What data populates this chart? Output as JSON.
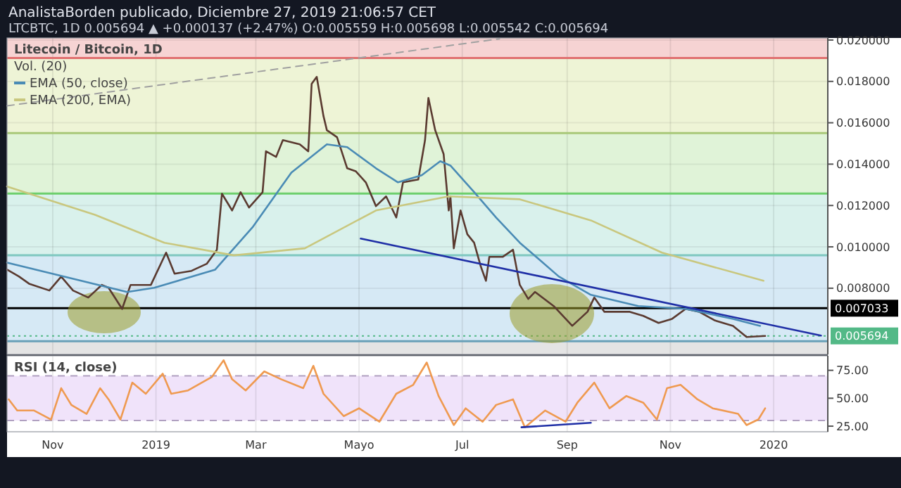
{
  "chart_data": [
    {
      "type": "line",
      "title": "Litecoin / Bitcoin, 1D",
      "subtitle": "AnalistaBorden publicado, Diciembre 27, 2019 21:06:57 CET",
      "annotations": [
        "LTCBTC, 1D 0.005694 ▲ +0.000137 (+2.47%) O:0.005559 H:0.005698 L:0.005542 C:0.005694",
        "Vol. (20)"
      ],
      "xlim": [
        "2018-10-05",
        "2020-02-02"
      ],
      "xticks": [
        {
          "value": "2018-11-01",
          "label": null
        },
        {
          "value": "2019-01-01",
          "label": null
        },
        {
          "value": "2019-03-01",
          "label": null
        },
        {
          "value": "2019-05-01",
          "label": null
        },
        {
          "value": "2019-07-01",
          "label": null
        },
        {
          "value": "2019-09-01",
          "label": null
        },
        {
          "value": "2019-11-01",
          "label": null
        },
        {
          "value": "2020-01-01",
          "label": null
        }
      ],
      "ylim": [
        0.0048,
        0.0201
      ],
      "yticks": [
        {
          "value": 0.008,
          "label": "0.008000"
        },
        {
          "value": 0.01,
          "label": "0.010000"
        },
        {
          "value": 0.012,
          "label": "0.012000"
        },
        {
          "value": 0.014,
          "label": "0.014000"
        },
        {
          "value": 0.016,
          "label": "0.016000"
        },
        {
          "value": 0.018,
          "label": "0.018000"
        },
        {
          "value": 0.02,
          "label": "0.020000"
        }
      ],
      "tick_labels": "y",
      "grid": true,
      "legend": "top left",
      "marker": "none",
      "bands": [
        {
          "axis": "y",
          "from": 0.01913,
          "to": 0.0201,
          "color": "#f6d3d3"
        },
        {
          "axis": "y",
          "from": 0.0155,
          "to": 0.01913,
          "color": "#eef4d6"
        },
        {
          "axis": "y",
          "from": 0.01258,
          "to": 0.0155,
          "color": "#e0f3d8"
        },
        {
          "axis": "y",
          "from": 0.00959,
          "to": 0.01258,
          "color": "#d9f1ec"
        },
        {
          "axis": "y",
          "from": 0.007033,
          "to": 0.00959,
          "color": "#d6e9f5"
        },
        {
          "axis": "y",
          "from": 0.00544,
          "to": 0.007033,
          "color": "#d6e9f5"
        },
        {
          "axis": "y",
          "from": 0.0048,
          "to": 0.00544,
          "color": "#e4e4e4"
        }
      ],
      "ref_lines": [
        {
          "axis": "y",
          "value": 0.01913,
          "color": "#e07070"
        },
        {
          "axis": "y",
          "value": 0.0155,
          "color": "#a8c878"
        },
        {
          "axis": "y",
          "value": 0.01258,
          "color": "#6ccf6c"
        },
        {
          "axis": "y",
          "value": 0.00959,
          "color": "#7fc8c0"
        },
        {
          "axis": "y",
          "value": 0.00544,
          "color": "#6aa0b8"
        },
        {
          "axis": "y",
          "value": 0.007033,
          "label": "0.007033",
          "color": "#000000"
        },
        {
          "axis": "y",
          "value": 0.005694,
          "label": "0.005694",
          "color": "#53b987",
          "line_style": "dotted"
        }
      ],
      "series": [
        {
          "color": "#5a3a30",
          "x": [
            "2018-10-05",
            "2018-10-12",
            "2018-10-18",
            "2018-10-30",
            "2018-11-06",
            "2018-11-13",
            "2018-11-22",
            "2018-11-30",
            "2018-12-04",
            "2018-12-12",
            "2018-12-17",
            "2018-12-29",
            "2019-01-07",
            "2019-01-12",
            "2019-01-22",
            "2019-01-31",
            "2019-02-06",
            "2019-02-09",
            "2019-02-15",
            "2019-02-20",
            "2019-02-25",
            "2019-03-05",
            "2019-03-07",
            "2019-03-13",
            "2019-03-17",
            "2019-03-27",
            "2019-04-01",
            "2019-04-03",
            "2019-04-06",
            "2019-04-10",
            "2019-04-12",
            "2019-04-18",
            "2019-04-24",
            "2019-04-29",
            "2019-05-05",
            "2019-05-11",
            "2019-05-17",
            "2019-05-23",
            "2019-05-27",
            "2019-06-05",
            "2019-06-09",
            "2019-06-11",
            "2019-06-15",
            "2019-06-20",
            "2019-06-23",
            "2019-06-24",
            "2019-06-26",
            "2019-06-30",
            "2019-07-04",
            "2019-07-08",
            "2019-07-12",
            "2019-07-15",
            "2019-07-17",
            "2019-07-25",
            "2019-07-31",
            "2019-08-04",
            "2019-08-09",
            "2019-08-13",
            "2019-08-24",
            "2019-09-04",
            "2019-09-13",
            "2019-09-17",
            "2019-09-23",
            "2019-10-08",
            "2019-10-16",
            "2019-10-25",
            "2019-11-02",
            "2019-11-10",
            "2019-11-18",
            "2019-11-27",
            "2019-12-08",
            "2019-12-16",
            "2019-12-27"
          ],
          "values": [
            0.0089,
            0.00857,
            0.00822,
            0.00789,
            0.00856,
            0.00789,
            0.00755,
            0.00816,
            0.00802,
            0.007,
            0.00816,
            0.00816,
            0.00972,
            0.0087,
            0.00884,
            0.00918,
            0.00986,
            0.01257,
            0.01176,
            0.01264,
            0.0119,
            0.01264,
            0.01462,
            0.01435,
            0.01516,
            0.01496,
            0.01462,
            0.01788,
            0.01822,
            0.01632,
            0.01564,
            0.0153,
            0.0138,
            0.01366,
            0.01312,
            0.01197,
            0.01244,
            0.01142,
            0.01312,
            0.01326,
            0.01516,
            0.0172,
            0.01564,
            0.01448,
            0.01176,
            0.01244,
            0.00993,
            0.01176,
            0.01061,
            0.0102,
            0.00904,
            0.00836,
            0.00952,
            0.00952,
            0.00986,
            0.00816,
            0.00748,
            0.00782,
            0.00714,
            0.00618,
            0.00686,
            0.00755,
            0.00686,
            0.00686,
            0.00666,
            0.00632,
            0.00652,
            0.007,
            0.00686,
            0.00645,
            0.00618,
            0.00564,
            0.005694
          ]
        },
        {
          "name": "EMA (50, close)",
          "color": "#4a8bb5",
          "x": [
            "2018-10-05",
            "2018-12-15",
            "2018-12-31",
            "2019-02-05",
            "2019-02-27",
            "2019-03-22",
            "2019-04-12",
            "2019-04-24",
            "2019-05-11",
            "2019-05-24",
            "2019-06-07",
            "2019-06-18",
            "2019-06-24",
            "2019-07-08",
            "2019-07-21",
            "2019-08-04",
            "2019-08-27",
            "2019-09-15",
            "2019-10-13",
            "2019-11-10",
            "2019-12-08",
            "2019-12-24"
          ],
          "values": [
            0.00924,
            0.00782,
            0.00802,
            0.0089,
            0.01094,
            0.01359,
            0.01496,
            0.01482,
            0.0138,
            0.01312,
            0.01346,
            0.01414,
            0.01393,
            0.01265,
            0.01142,
            0.0102,
            0.00857,
            0.00768,
            0.00714,
            0.007,
            0.00652,
            0.00618
          ]
        },
        {
          "name": "EMA (200, EMA)",
          "color": "#c9c77e",
          "x": [
            "2018-10-05",
            "2018-11-26",
            "2019-01-06",
            "2019-02-16",
            "2019-03-30",
            "2019-05-11",
            "2019-06-23",
            "2019-08-04",
            "2019-09-15",
            "2019-10-27",
            "2019-12-26"
          ],
          "values": [
            0.01292,
            0.01155,
            0.0102,
            0.00959,
            0.00993,
            0.01176,
            0.01244,
            0.0123,
            0.01128,
            0.00972,
            0.00836
          ]
        },
        {
          "color": "#1f2fa6",
          "x": [
            "2019-05-02",
            "2020-01-29"
          ],
          "values": [
            0.0104,
            0.00571
          ]
        },
        {
          "color": "#a0a0a0",
          "line_style": "dashed",
          "x": [
            "2018-10-05",
            "2019-07-23"
          ],
          "values": [
            0.01682,
            0.02006
          ]
        }
      ]
    },
    {
      "type": "line",
      "title": "RSI (14, close)",
      "xlim": [
        "2018-10-05",
        "2020-02-02"
      ],
      "xticks": [
        {
          "value": "2018-11-01",
          "label": "Nov"
        },
        {
          "value": "2019-01-01",
          "label": "2019"
        },
        {
          "value": "2019-03-01",
          "label": "Mar"
        },
        {
          "value": "2019-05-01",
          "label": "Mayo"
        },
        {
          "value": "2019-07-01",
          "label": "Jul"
        },
        {
          "value": "2019-09-01",
          "label": "Sep"
        },
        {
          "value": "2019-11-01",
          "label": "Nov"
        },
        {
          "value": "2020-01-01",
          "label": "2020"
        }
      ],
      "ylim": [
        20,
        88
      ],
      "yticks": [
        {
          "value": 25,
          "label": "25.00"
        },
        {
          "value": 50,
          "label": "50.00"
        },
        {
          "value": 75,
          "label": "75.00"
        }
      ],
      "grid": "x",
      "marker": "none",
      "bands": [
        {
          "axis": "y",
          "from": 30,
          "to": 70,
          "color": "#f0e3fa"
        }
      ],
      "ref_lines": [
        {
          "axis": "y",
          "value": 70,
          "color": "#b0a0c0",
          "line_style": "dashed"
        },
        {
          "axis": "y",
          "value": 30,
          "color": "#b0a0c0",
          "line_style": "dashed"
        }
      ],
      "series": [
        {
          "color": "#ef9a50",
          "x": [
            "2018-10-06",
            "2018-10-11",
            "2018-10-21",
            "2018-10-31",
            "2018-11-06",
            "2018-11-12",
            "2018-11-21",
            "2018-11-29",
            "2018-12-04",
            "2018-12-11",
            "2018-12-18",
            "2018-12-26",
            "2019-01-05",
            "2019-01-10",
            "2019-01-20",
            "2019-02-03",
            "2019-02-10",
            "2019-02-15",
            "2019-02-23",
            "2019-03-06",
            "2019-03-16",
            "2019-03-29",
            "2019-04-04",
            "2019-04-10",
            "2019-04-22",
            "2019-05-01",
            "2019-05-13",
            "2019-05-23",
            "2019-06-02",
            "2019-06-10",
            "2019-06-17",
            "2019-06-26",
            "2019-07-03",
            "2019-07-13",
            "2019-07-21",
            "2019-07-31",
            "2019-08-07",
            "2019-08-19",
            "2019-08-31",
            "2019-09-07",
            "2019-09-17",
            "2019-09-26",
            "2019-10-06",
            "2019-10-16",
            "2019-10-24",
            "2019-10-30",
            "2019-11-07",
            "2019-11-17",
            "2019-11-26",
            "2019-12-11",
            "2019-12-16",
            "2019-12-23",
            "2019-12-27"
          ],
          "values": [
            49,
            39,
            39,
            31,
            59,
            44,
            36,
            59,
            49,
            31,
            64,
            54,
            72,
            54,
            57,
            69,
            84,
            67,
            57,
            74,
            67,
            59,
            79,
            54,
            34,
            41,
            29,
            54,
            62,
            82,
            52,
            26,
            41,
            29,
            44,
            49,
            24,
            39,
            29,
            46,
            64,
            41,
            52,
            46,
            31,
            59,
            62,
            49,
            41,
            36,
            26,
            31,
            41
          ]
        },
        {
          "color": "#1f2fa6",
          "x": [
            "2019-08-05",
            "2019-09-15"
          ],
          "values": [
            24,
            28
          ]
        }
      ]
    }
  ]
}
